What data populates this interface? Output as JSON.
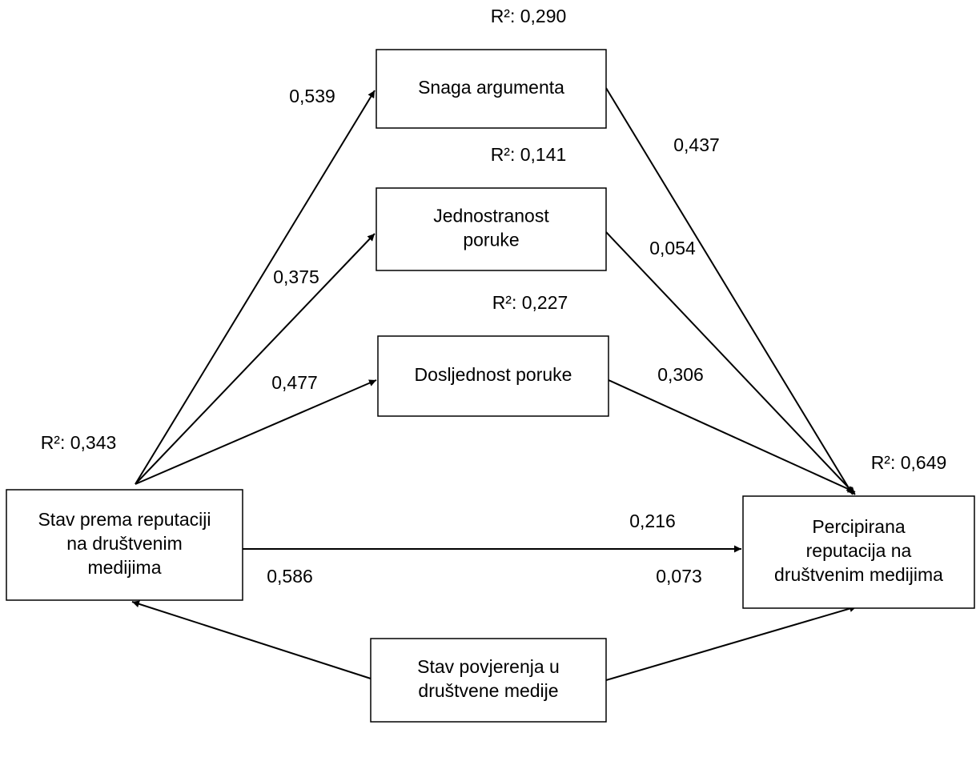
{
  "nodes": [
    {
      "label": [
        "Snaga argumenta"
      ],
      "r2": "R²: 0,290"
    },
    {
      "label": [
        "Jednostranost",
        "poruke"
      ],
      "r2": "R²: 0,141"
    },
    {
      "label": [
        "Dosljednost poruke"
      ],
      "r2": "R²: 0,227"
    },
    {
      "label": [
        "Stav prema reputaciji",
        "na društvenim",
        "medijima"
      ],
      "r2": "R²: 0,343"
    },
    {
      "label": [
        "Percipirana",
        "reputacija na",
        "društvenim medijima"
      ],
      "r2": "R²: 0,649"
    },
    {
      "label": [
        "Stav povjerenja u",
        "društvene medije"
      ]
    }
  ],
  "edges": [
    {
      "label": "0,539"
    },
    {
      "label": "0,375"
    },
    {
      "label": "0,477"
    },
    {
      "label": "0,437"
    },
    {
      "label": "0,054"
    },
    {
      "label": "0,306"
    },
    {
      "label": "0,216"
    },
    {
      "label": "0,586"
    },
    {
      "label": "0,073"
    }
  ]
}
